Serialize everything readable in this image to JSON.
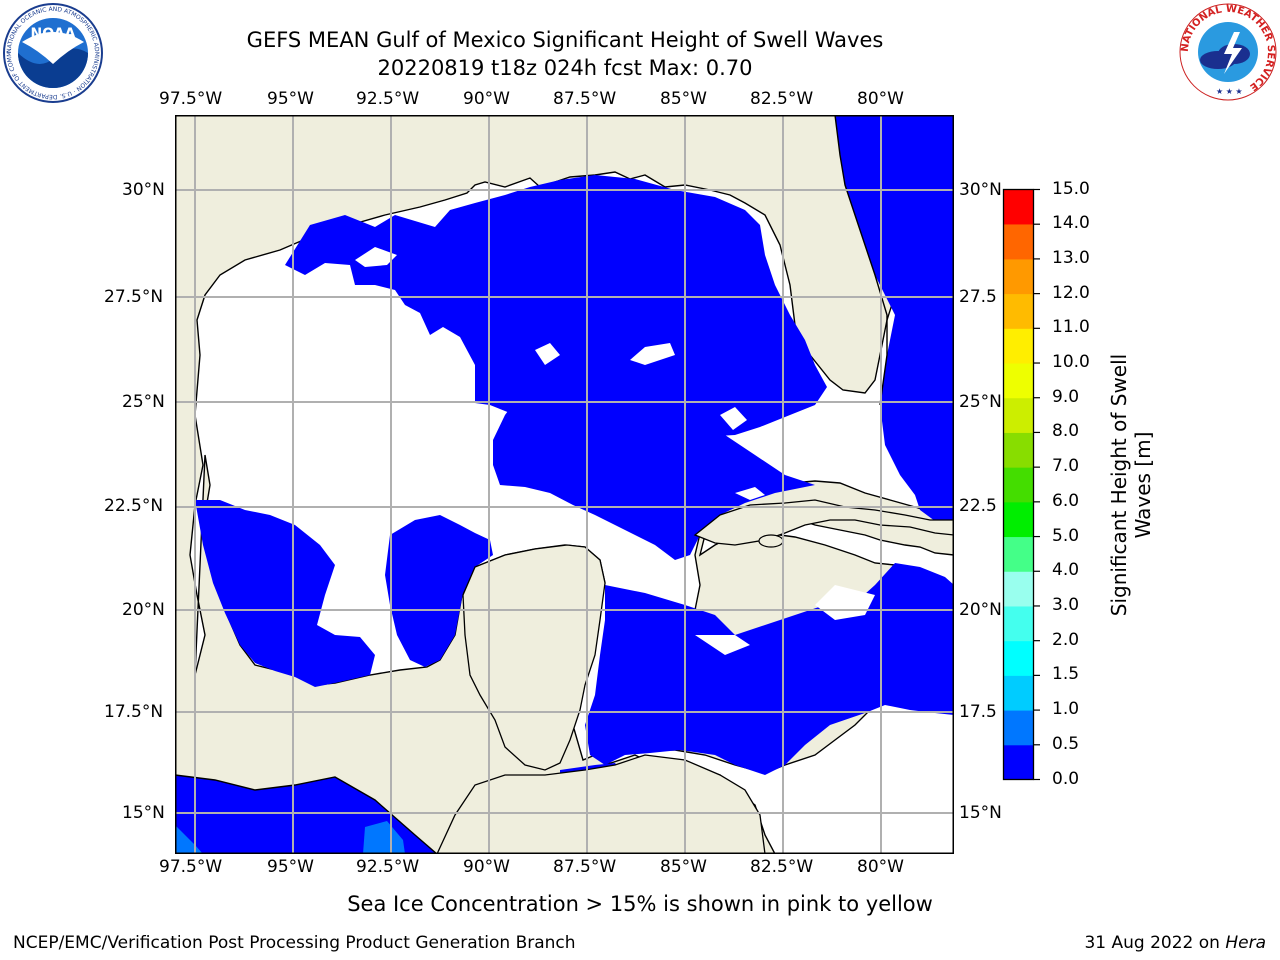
{
  "header": {
    "title_line1": "GEFS MEAN Gulf of Mexico Significant Height of Swell Waves",
    "title_line2": "20220819 t18z 024h fcst   Max: 0.70"
  },
  "logos": {
    "noaa_text": "NOAA",
    "noaa_ring_text": "NATIONAL OCEANIC AND ATMOSPHERIC ADMINISTRATION · U.S. DEPARTMENT OF COMMERCE",
    "nws_ring_text": "NATIONAL WEATHER SERVICE"
  },
  "map": {
    "lon_labels": [
      "97.5°W",
      "95°W",
      "92.5°W",
      "90°W",
      "87.5°W",
      "85°W",
      "82.5°W",
      "80°W"
    ],
    "lat_labels_left": [
      "30°N",
      "27.5°N",
      "25°N",
      "22.5°N",
      "20°N",
      "17.5°N",
      "15°N"
    ],
    "lat_labels_right": [
      "30°N",
      "27.5",
      "25°N",
      "22.5",
      "20°N",
      "17.5",
      "15°N"
    ],
    "colors": {
      "land": "#efeedd",
      "water_low": "#0000ff",
      "water_mid": "#0077ff",
      "grid": "#b0b0b0",
      "coast": "#000000"
    }
  },
  "colorbar": {
    "title_line1": "Significant Height of Swell",
    "title_line2": "Waves [m]",
    "tick_labels": [
      "15.0",
      "14.0",
      "13.0",
      "12.0",
      "11.0",
      "10.0",
      "9.0",
      "8.0",
      "7.0",
      "6.0",
      "5.0",
      "4.0",
      "3.0",
      "2.0",
      "1.5",
      "1.0",
      "0.5",
      "0.0"
    ],
    "colors_bottom_to_top": [
      "#0000ff",
      "#0077ff",
      "#00ccff",
      "#00ffff",
      "#44ffee",
      "#99ffee",
      "#44ff88",
      "#00ee00",
      "#44dd00",
      "#88dd00",
      "#ccee00",
      "#eeff00",
      "#ffee00",
      "#ffbb00",
      "#ff9900",
      "#ff6600",
      "#ff3300",
      "#ff0000"
    ]
  },
  "caption": "Sea Ice Concentration > 15% is shown in pink to yellow",
  "footer": {
    "left": "NCEP/EMC/Verification Post Processing Product Generation Branch",
    "right_prefix": "31 Aug 2022 on ",
    "right_machine": "Hera"
  }
}
